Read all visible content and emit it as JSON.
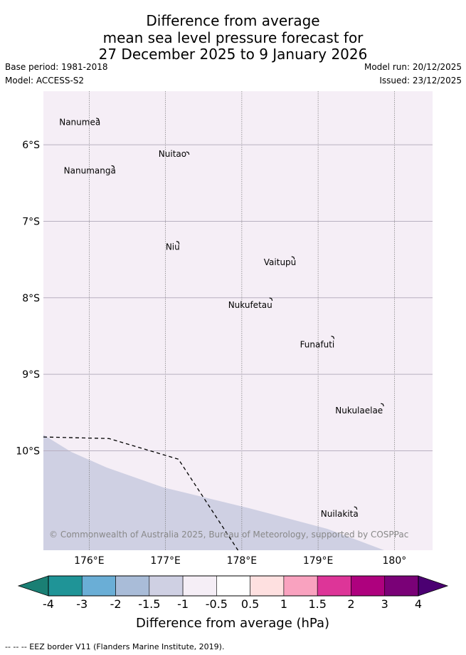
{
  "title": {
    "line1": "Difference from average",
    "line2": "mean sea level pressure forecast for",
    "line3": "27 December 2025 to 9 January 2026"
  },
  "meta": {
    "base_period": "Base period: 1981-2018",
    "model": "Model: ACCESS-S2",
    "model_run": "Model run: 20/12/2025",
    "issued": "Issued: 23/12/2025"
  },
  "map": {
    "lon_range": [
      175.4,
      180.5
    ],
    "lat_range": [
      -5.3,
      -11.3
    ],
    "lon_ticks": [
      {
        "value": 176,
        "label": "176°E"
      },
      {
        "value": 177,
        "label": "177°E"
      },
      {
        "value": 178,
        "label": "178°E"
      },
      {
        "value": 179,
        "label": "179°E"
      },
      {
        "value": 180,
        "label": "180°"
      }
    ],
    "lat_ticks": [
      {
        "value": -6,
        "label": "6°S"
      },
      {
        "value": -7,
        "label": "7°S"
      },
      {
        "value": -8,
        "label": "8°S"
      },
      {
        "value": -9,
        "label": "9°S"
      },
      {
        "value": -10,
        "label": "10°S"
      }
    ],
    "background_color": "#f5eef6",
    "lower_band_color": "#cfd0e3",
    "places": [
      {
        "name": "Nanumea",
        "lon": 176.12,
        "lat": -5.67
      },
      {
        "name": "Nuitao",
        "lon": 177.3,
        "lat": -6.11
      },
      {
        "name": "Nanumanga",
        "lon": 176.32,
        "lat": -6.29
      },
      {
        "name": "Niu",
        "lon": 177.17,
        "lat": -7.28
      },
      {
        "name": "Vaitupu",
        "lon": 178.68,
        "lat": -7.48
      },
      {
        "name": "Nukufetau",
        "lon": 178.39,
        "lat": -8.02
      },
      {
        "name": "Funafuti",
        "lon": 179.2,
        "lat": -8.52
      },
      {
        "name": "Nukulaelae",
        "lon": 179.85,
        "lat": -9.4
      },
      {
        "name": "Nuilakita",
        "lon": 179.5,
        "lat": -10.75
      }
    ],
    "eez_border": [
      [
        175.4,
        -9.82
      ],
      [
        176.26,
        -9.84
      ],
      [
        177.17,
        -10.11
      ],
      [
        177.95,
        -11.3
      ]
    ],
    "copyright": "© Commonwealth of Australia 2025, Bureau of Meteorology, supported by COSPPac"
  },
  "colorbar": {
    "label": "Difference from average (hPa)",
    "ticks": [
      "-4",
      "-3",
      "-2",
      "-1.5",
      "-1",
      "-0.5",
      "0.5",
      "1",
      "1.5",
      "2",
      "3",
      "4"
    ],
    "under_color": "#1a7f74",
    "over_color": "#4b0072",
    "colors": [
      "#1f9497",
      "#6aaed6",
      "#a9bcd8",
      "#cfd0e3",
      "#f5eef6",
      "#ffffff",
      "#fee0e0",
      "#f9a2bf",
      "#dd3598",
      "#ae017e",
      "#7a0177"
    ]
  },
  "footnote": "-- -- -- EEZ border V11 (Flanders Marine Institute, 2019)."
}
